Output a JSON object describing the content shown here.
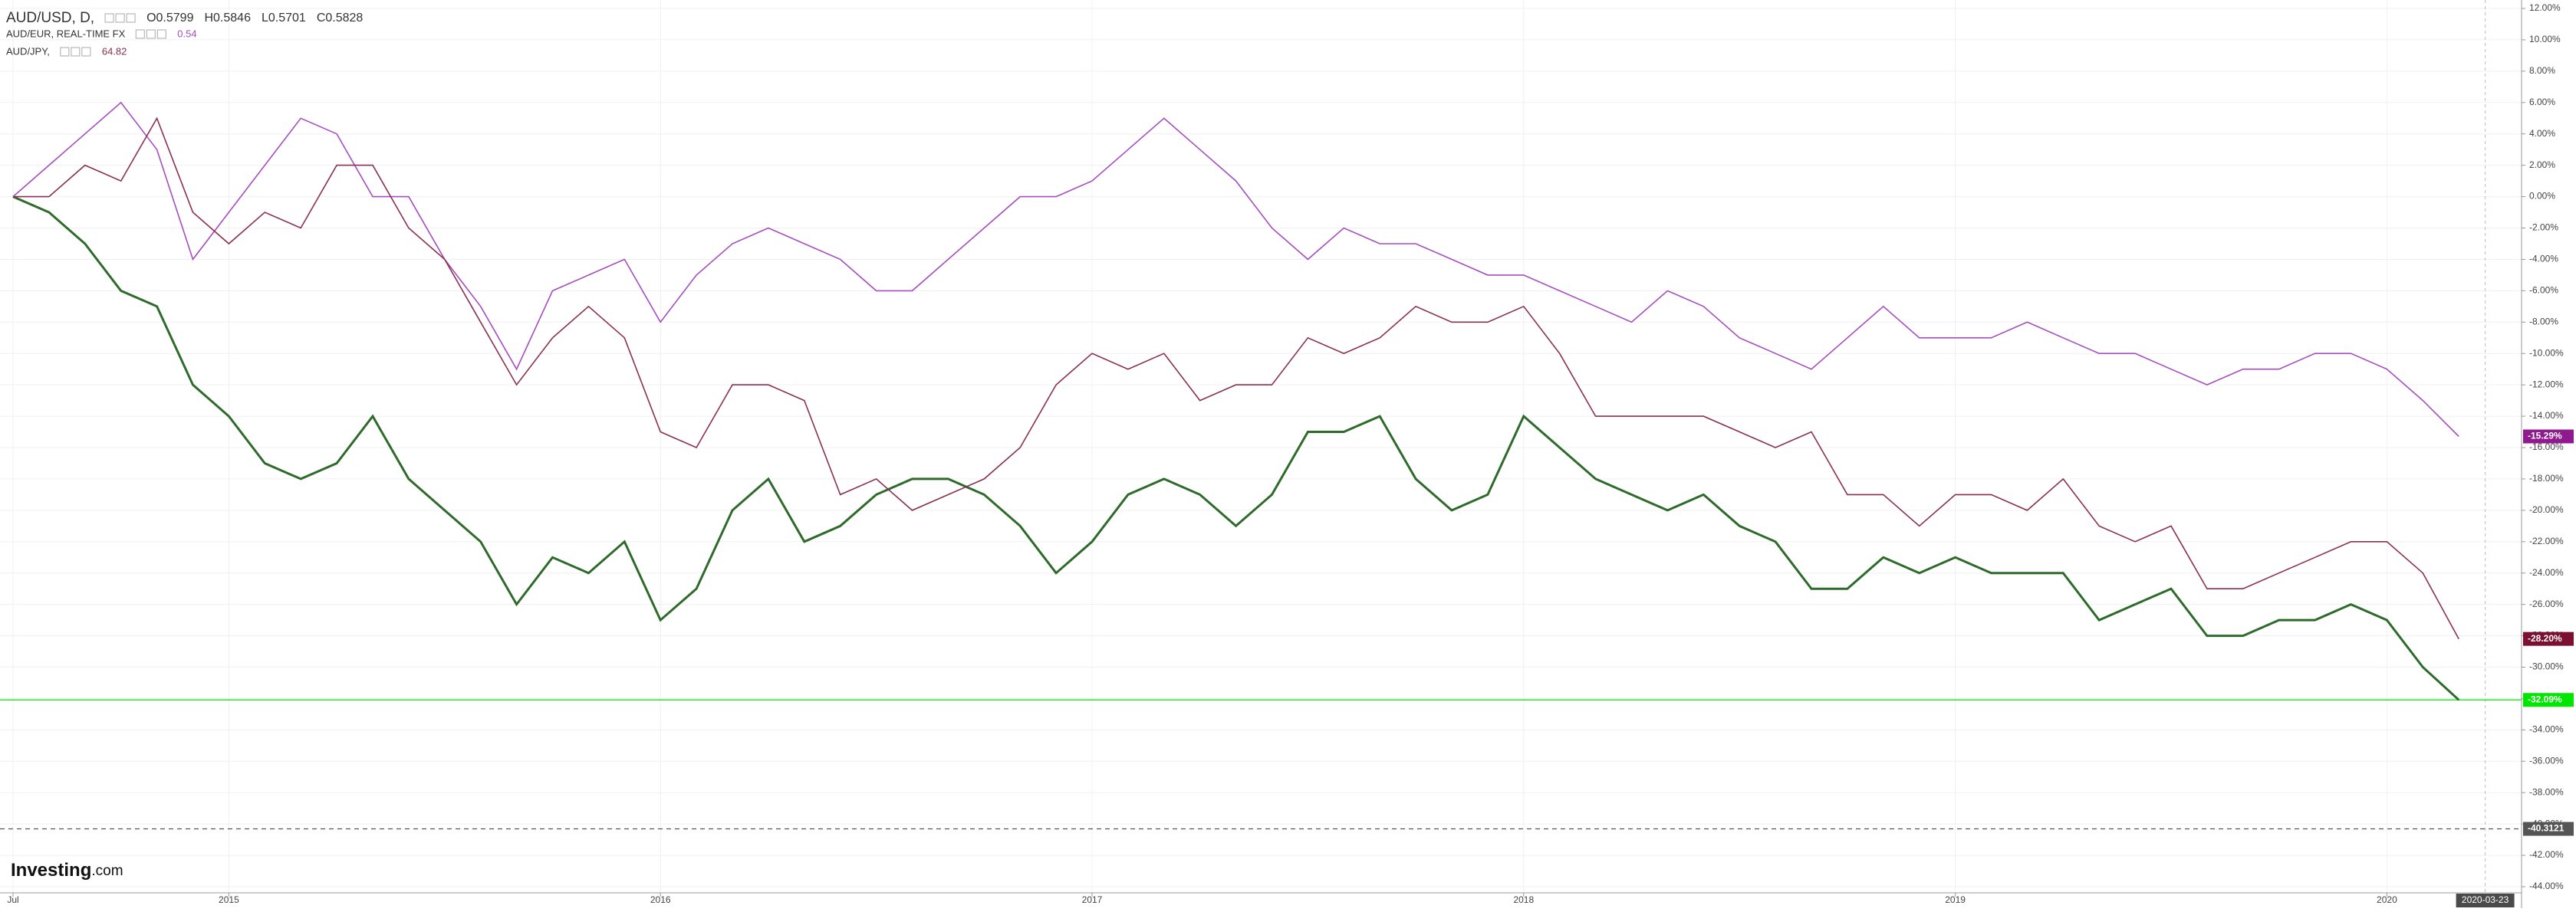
{
  "chart_data": {
    "type": "line",
    "header": {
      "ohlc": [
        "O0.5799",
        "H0.5846",
        "L0.5701",
        "C0.5828"
      ]
    },
    "logo": {
      "main": "Investing",
      "suffix": ".com"
    },
    "x": [
      "2014-07",
      "2014-08",
      "2014-09",
      "2014-10",
      "2014-11",
      "2014-12",
      "2015-01",
      "2015-02",
      "2015-03",
      "2015-04",
      "2015-05",
      "2015-06",
      "2015-07",
      "2015-08",
      "2015-09",
      "2015-10",
      "2015-11",
      "2015-12",
      "2016-01",
      "2016-02",
      "2016-03",
      "2016-04",
      "2016-05",
      "2016-06",
      "2016-07",
      "2016-08",
      "2016-09",
      "2016-10",
      "2016-11",
      "2016-12",
      "2017-01",
      "2017-02",
      "2017-03",
      "2017-04",
      "2017-05",
      "2017-06",
      "2017-07",
      "2017-08",
      "2017-09",
      "2017-10",
      "2017-11",
      "2017-12",
      "2018-01",
      "2018-02",
      "2018-03",
      "2018-04",
      "2018-05",
      "2018-06",
      "2018-07",
      "2018-08",
      "2018-09",
      "2018-10",
      "2018-11",
      "2018-12",
      "2019-01",
      "2019-02",
      "2019-03",
      "2019-04",
      "2019-05",
      "2019-06",
      "2019-07",
      "2019-08",
      "2019-09",
      "2019-10",
      "2019-11",
      "2019-12",
      "2020-01",
      "2020-02",
      "2020-03"
    ],
    "series": [
      {
        "name": "AUD/USD, D,",
        "color": "#2e6b2a",
        "values": [
          0,
          -1,
          -3,
          -6,
          -7,
          -12,
          -14,
          -17,
          -18,
          -17,
          -14,
          -18,
          -20,
          -22,
          -26,
          -23,
          -24,
          -22,
          -27,
          -25,
          -20,
          -18,
          -22,
          -21,
          -19,
          -18,
          -18,
          -19,
          -21,
          -24,
          -22,
          -19,
          -18,
          -19,
          -21,
          -19,
          -15,
          -15,
          -14,
          -18,
          -20,
          -19,
          -14,
          -16,
          -18,
          -19,
          -20,
          -19,
          -21,
          -22,
          -25,
          -25,
          -23,
          -24,
          -23,
          -24,
          -24,
          -24,
          -27,
          -26,
          -25,
          -28,
          -28,
          -27,
          -27,
          -26,
          -27,
          -30,
          -32.09
        ]
      },
      {
        "name": "AUD/EUR, REAL-TIME FX",
        "color": "#a64dbf",
        "quote": "0.54",
        "last_label": "-15.29%",
        "label_color": "#8e1a8e",
        "values": [
          0,
          2,
          4,
          6,
          3,
          -4,
          -1,
          2,
          5,
          4,
          0,
          0,
          -4,
          -7,
          -11,
          -6,
          -5,
          -4,
          -8,
          -5,
          -3,
          -2,
          -3,
          -4,
          -6,
          -6,
          -4,
          -2,
          0,
          0,
          1,
          3,
          5,
          3,
          1,
          -2,
          -4,
          -2,
          -3,
          -3,
          -4,
          -5,
          -5,
          -6,
          -7,
          -8,
          -6,
          -7,
          -9,
          -10,
          -11,
          -9,
          -7,
          -9,
          -9,
          -9,
          -8,
          -9,
          -10,
          -10,
          -11,
          -12,
          -11,
          -11,
          -10,
          -10,
          -11,
          -13,
          -15.29
        ]
      },
      {
        "name": "AUD/JPY,",
        "color": "#8b2f52",
        "quote": "64.82",
        "last_label": "-28.20%",
        "label_color": "#7b1030",
        "values": [
          0,
          0,
          2,
          1,
          5,
          -1,
          -3,
          -1,
          -2,
          2,
          2,
          -2,
          -4,
          -8,
          -12,
          -9,
          -7,
          -9,
          -15,
          -16,
          -12,
          -12,
          -13,
          -19,
          -18,
          -20,
          -19,
          -18,
          -16,
          -12,
          -10,
          -11,
          -10,
          -13,
          -12,
          -12,
          -9,
          -10,
          -9,
          -7,
          -8,
          -8,
          -7,
          -10,
          -14,
          -14,
          -14,
          -14,
          -15,
          -16,
          -15,
          -19,
          -19,
          -21,
          -19,
          -19,
          -20,
          -18,
          -21,
          -22,
          -21,
          -25,
          -25,
          -24,
          -23,
          -22,
          -22,
          -24,
          -28.2
        ]
      }
    ],
    "hlines": [
      {
        "value": -32.09,
        "label": "-32.09%",
        "color": "#00e600",
        "style": "solid"
      },
      {
        "value": -40.3121,
        "label": "-40.3121",
        "color": "#555555",
        "style": "dashed"
      }
    ],
    "xticks": [
      {
        "value": "2014-07",
        "label": "Jul"
      },
      {
        "value": "2015-01",
        "label": "2015"
      },
      {
        "value": "2016-01",
        "label": "2016"
      },
      {
        "value": "2017-01",
        "label": "2017"
      },
      {
        "value": "2018-01",
        "label": "2018"
      },
      {
        "value": "2019-01",
        "label": "2019"
      },
      {
        "value": "2020-01",
        "label": "2020"
      }
    ],
    "cursor_x": "2020-03-23",
    "ylim": [
      -44,
      12
    ],
    "yticks": [
      {
        "value": 12,
        "label": "12.00%"
      },
      {
        "value": 10,
        "label": "10.00%"
      },
      {
        "value": 8,
        "label": "8.00%"
      },
      {
        "value": 6,
        "label": "6.00%"
      },
      {
        "value": 4,
        "label": "4.00%"
      },
      {
        "value": 2,
        "label": "2.00%"
      },
      {
        "value": 0,
        "label": "0.00%"
      },
      {
        "value": -2,
        "label": "-2.00%"
      },
      {
        "value": -4,
        "label": "-4.00%"
      },
      {
        "value": -6,
        "label": "-6.00%"
      },
      {
        "value": -8,
        "label": "-8.00%"
      },
      {
        "value": -10,
        "label": "-10.00%"
      },
      {
        "value": -12,
        "label": "-12.00%"
      },
      {
        "value": -14,
        "label": "-14.00%"
      },
      {
        "value": -16,
        "label": "-16.00%"
      },
      {
        "value": -18,
        "label": "-18.00%"
      },
      {
        "value": -20,
        "label": "-20.00%"
      },
      {
        "value": -22,
        "label": "-22.00%"
      },
      {
        "value": -24,
        "label": "-24.00%"
      },
      {
        "value": -26,
        "label": "-26.00%"
      },
      {
        "value": -28,
        "label": "-28.00%"
      },
      {
        "value": -30,
        "label": "-30.00%"
      },
      {
        "value": -32,
        "label": "-32.00%"
      },
      {
        "value": -34,
        "label": "-34.00%"
      },
      {
        "value": -36,
        "label": "-36.00%"
      },
      {
        "value": -38,
        "label": "-38.00%"
      },
      {
        "value": -40,
        "label": "-40.00%"
      },
      {
        "value": -42,
        "label": "-42.00%"
      },
      {
        "value": -44,
        "label": "-44.00%"
      }
    ],
    "grid": true
  }
}
